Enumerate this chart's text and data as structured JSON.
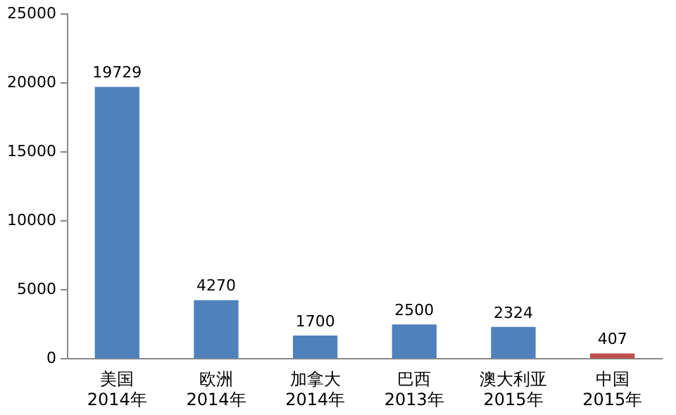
{
  "chart_data": {
    "type": "bar",
    "categories": [
      "美国\n2014年",
      "欧洲\n2014年",
      "加拿大\n2014年",
      "巴西\n2013年",
      "澳大利亚\n2015年",
      "中国\n2015年"
    ],
    "values": [
      19729,
      4270,
      1700,
      2500,
      2324,
      407
    ],
    "colors": [
      "#4f81bd",
      "#4f81bd",
      "#4f81bd",
      "#4f81bd",
      "#4f81bd",
      "#c0504d"
    ],
    "ylim": [
      0,
      25000
    ],
    "yticks": [
      0,
      5000,
      10000,
      15000,
      20000,
      25000
    ],
    "data_labels": true,
    "grid": false,
    "legend": false
  }
}
